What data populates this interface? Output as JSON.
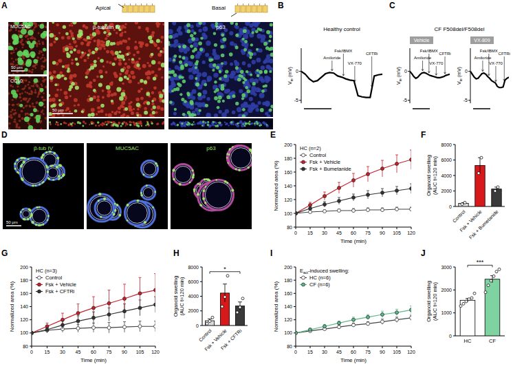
{
  "panel_letters": [
    "A",
    "B",
    "C",
    "D",
    "E",
    "F",
    "G",
    "H",
    "I",
    "J"
  ],
  "images": {
    "A": {
      "header": [
        "Apical",
        "Basal"
      ],
      "labels": [
        "MUC5AC",
        "CC10",
        "β-tubulin IV",
        "p63"
      ],
      "scale_bars": [
        "50 μm",
        "50 μm"
      ]
    },
    "D": {
      "labels": [
        "β-tub IV",
        "MUC5AC",
        "p63"
      ],
      "scale_bar": "50 μm"
    }
  },
  "chart_data": [
    {
      "type": "line",
      "title": "Healthy control",
      "x": [
        0,
        5,
        10,
        15,
        20,
        25,
        30,
        35,
        40,
        45,
        50,
        55,
        60,
        65,
        70,
        75,
        80,
        85,
        90,
        95,
        100
      ],
      "xlim": [
        0,
        100
      ],
      "ylim": [
        -5.5,
        4
      ],
      "yticks": [
        -5,
        0
      ],
      "y_label": [
        "V",
        "te",
        " (mV)"
      ],
      "tick_labels": "y",
      "series": [
        {
          "color": "#000000",
          "values": [
            0,
            -0.5,
            -1.3,
            -1.8,
            -1.6,
            -1.0,
            -0.4,
            -0.2,
            -0.3,
            -0.8,
            -1.0,
            -1.3,
            -1.5,
            -1.6,
            -4.2,
            -4.4,
            -4.5,
            -4.5,
            -0.8,
            -0.6,
            -0.5
          ]
        }
      ],
      "annotations": [
        {
          "text": "Amiloride",
          "x": 38
        },
        {
          "text": "Fsk/IBMX",
          "x": 52
        },
        {
          "text": "VX-770",
          "x": 66
        },
        {
          "text": "CFTRi",
          "x": 87
        }
      ]
    },
    {
      "type": "line",
      "title": "CF F508del/F508del",
      "subtitle": "Vehicle",
      "x": [
        0,
        5,
        10,
        15,
        20,
        25,
        30,
        35,
        40,
        45,
        50,
        55,
        60,
        65,
        70,
        75,
        80,
        85,
        90,
        95,
        100
      ],
      "xlim": [
        0,
        100
      ],
      "ylim": [
        -5.5,
        4
      ],
      "yticks": [
        -5,
        0
      ],
      "y_label": [
        "V",
        "te",
        " (mV)"
      ],
      "tick_labels": "y",
      "series": [
        {
          "color": "#000000",
          "values": [
            0,
            -0.4,
            -0.9,
            -1.2,
            -1.0,
            -0.6,
            -0.3,
            -0.2,
            -0.3,
            -0.5,
            -0.7,
            -0.8,
            -0.9,
            -1.0,
            -1.1,
            -1.1,
            -1.0,
            -0.9,
            -0.7,
            -0.6,
            -0.5
          ]
        }
      ],
      "annotations": [
        {
          "text": "Amiloride",
          "x": 32
        },
        {
          "text": "Fsk/IBMX",
          "x": 48
        },
        {
          "text": "VX-770",
          "x": 66
        },
        {
          "text": "CFTRi",
          "x": 88
        }
      ]
    },
    {
      "type": "line",
      "subtitle": "VX-809",
      "x": [
        0,
        5,
        10,
        15,
        20,
        25,
        30,
        35,
        40,
        45,
        50,
        55,
        60,
        65,
        70,
        75,
        80,
        85,
        90,
        95,
        100
      ],
      "xlim": [
        0,
        100
      ],
      "ylim": [
        -5.5,
        4
      ],
      "yticks": [
        -5,
        0
      ],
      "y_label": [
        "V",
        "te",
        " (mV)"
      ],
      "tick_labels": "y",
      "series": [
        {
          "color": "#000000",
          "values": [
            0,
            -0.5,
            -1.0,
            -1.3,
            -1.2,
            -0.8,
            -0.4,
            -0.3,
            -0.5,
            -0.9,
            -1.2,
            -1.6,
            -1.8,
            -2.0,
            -2.6,
            -2.8,
            -2.8,
            -2.7,
            -1.5,
            -1.2,
            -1.0
          ]
        }
      ],
      "annotations": [
        {
          "text": "Amiloride",
          "x": 32
        },
        {
          "text": "Fsk/IBMX",
          "x": 48
        },
        {
          "text": "VX-770",
          "x": 66
        },
        {
          "text": "CFTRi",
          "x": 88
        }
      ]
    },
    {
      "type": "line",
      "title": "HC (n=2)",
      "x": [
        0,
        15,
        30,
        45,
        60,
        75,
        90,
        105,
        120
      ],
      "xlim": [
        0,
        120
      ],
      "xticks": [
        0,
        15,
        30,
        45,
        60,
        75,
        90,
        105,
        120
      ],
      "ylim": [
        80,
        200
      ],
      "yticks": [
        80,
        100,
        120,
        140,
        160,
        180,
        200
      ],
      "x_label": "Time (min)",
      "y_label": "Normalized area (%)",
      "legend": "upper left",
      "series": [
        {
          "name": "Control",
          "color": "#ffffff",
          "marker": "circle",
          "values": [
            100,
            102,
            103,
            104,
            104,
            105,
            105,
            106,
            106
          ],
          "errors": [
            0,
            2,
            2,
            2,
            3,
            3,
            3,
            3,
            3
          ]
        },
        {
          "name": "Fsk + Vehicle",
          "color": "#c8202a",
          "marker": "circle",
          "values": [
            100,
            112,
            125,
            137,
            148,
            157,
            165,
            172,
            178
          ],
          "errors": [
            0,
            4,
            6,
            8,
            10,
            11,
            12,
            13,
            14
          ]
        },
        {
          "name": "Fsk + Bumetanide",
          "color": "#333333",
          "marker": "circle",
          "values": [
            100,
            107,
            113,
            118,
            123,
            127,
            130,
            133,
            136
          ],
          "errors": [
            0,
            3,
            4,
            5,
            5,
            6,
            6,
            6,
            7
          ]
        }
      ]
    },
    {
      "type": "bar",
      "categories": [
        "Control",
        "Fsk + Vehicle",
        "Fsk + Bumetanide"
      ],
      "values": [
        400,
        5300,
        2250
      ],
      "errors": [
        100,
        1000,
        250
      ],
      "points": [
        [
          300,
          500
        ],
        [
          4300,
          6300
        ],
        [
          2000,
          2500
        ]
      ],
      "colors": [
        "#d9d9d9",
        "#d7191c",
        "#3a3a3a"
      ],
      "ylim": [
        0,
        8000
      ],
      "yticks": [
        0,
        2000,
        4000,
        6000,
        8000
      ],
      "y_label": [
        "Organoid swelling",
        "(AUC t=120 min)"
      ]
    },
    {
      "type": "line",
      "title": "HC (n=3)",
      "x": [
        0,
        15,
        30,
        45,
        60,
        75,
        90,
        105,
        120
      ],
      "xlim": [
        0,
        120
      ],
      "xticks": [
        0,
        15,
        30,
        45,
        60,
        75,
        90,
        105,
        120
      ],
      "ylim": [
        80,
        200
      ],
      "yticks": [
        80,
        100,
        120,
        140,
        160,
        180,
        200
      ],
      "x_label": "Time (min)",
      "y_label": "Normalized area (%)",
      "legend": "upper left",
      "series": [
        {
          "name": "Control",
          "color": "#ffffff",
          "marker": "circle",
          "values": [
            100,
            104,
            106,
            107,
            108,
            108,
            109,
            110,
            110
          ],
          "errors": [
            0,
            4,
            5,
            6,
            7,
            8,
            8,
            8,
            8
          ]
        },
        {
          "name": "Fsk + Vehicle",
          "color": "#c8202a",
          "marker": "circle",
          "values": [
            100,
            110,
            120,
            130,
            138,
            145,
            152,
            160,
            165
          ],
          "errors": [
            0,
            5,
            10,
            14,
            17,
            20,
            22,
            24,
            25
          ]
        },
        {
          "name": "Fsk + CFTRi",
          "color": "#333333",
          "marker": "circle",
          "values": [
            100,
            105,
            112,
            118,
            123,
            128,
            133,
            138,
            143
          ],
          "errors": [
            0,
            4,
            6,
            8,
            9,
            10,
            11,
            12,
            12
          ]
        }
      ]
    },
    {
      "type": "bar",
      "categories": [
        "Control",
        "Fsk + Vehicle",
        "Fsk + CFTRi"
      ],
      "values": [
        650,
        4433,
        2667
      ],
      "errors": [
        250,
        1240,
        555
      ],
      "points": [
        [
          250,
          600,
          1100
        ],
        [
          2600,
          3900,
          6800
        ],
        [
          1800,
          2500,
          3700
        ]
      ],
      "colors": [
        "#d9d9d9",
        "#d7191c",
        "#3a3a3a"
      ],
      "ylim": [
        0,
        8000
      ],
      "yticks": [
        0,
        2000,
        4000,
        6000,
        8000
      ],
      "y_label": [
        "Organoid swelling",
        "(AUC t=120 min)"
      ],
      "significance": [
        {
          "label": "*",
          "between": [
            0,
            2
          ]
        }
      ]
    },
    {
      "type": "line",
      "title": [
        "E",
        "act",
        "-induced swelling:"
      ],
      "x": [
        0,
        15,
        30,
        45,
        60,
        75,
        90,
        105,
        120
      ],
      "xlim": [
        0,
        120
      ],
      "xticks": [
        0,
        15,
        30,
        45,
        60,
        75,
        90,
        105,
        120
      ],
      "ylim": [
        80,
        200
      ],
      "yticks": [
        80,
        100,
        120,
        140,
        160,
        180,
        200
      ],
      "x_label": "Time (min)",
      "y_label": "Normalized area (%)",
      "legend": "upper left",
      "series": [
        {
          "name": "HC (n=6)",
          "color": "#ffffff",
          "marker": "circle",
          "values": [
            100,
            103,
            106,
            109,
            112,
            114,
            117,
            120,
            123
          ],
          "errors": [
            0,
            2,
            2,
            3,
            3,
            3,
            4,
            4,
            4
          ]
        },
        {
          "name": "CF (n=6)",
          "color": "#5cb88a",
          "marker": "circle",
          "values": [
            100,
            105,
            110,
            115,
            120,
            124,
            128,
            131,
            135
          ],
          "errors": [
            0,
            2,
            3,
            3,
            4,
            4,
            5,
            5,
            6
          ]
        }
      ]
    },
    {
      "type": "bar",
      "categories": [
        "HC",
        "CF"
      ],
      "values": [
        1550,
        2467
      ],
      "errors": [
        80,
        155
      ],
      "points": [
        [
          1300,
          1400,
          1500,
          1600,
          1650,
          1850
        ],
        [
          1900,
          2200,
          2400,
          2600,
          2800,
          2900
        ]
      ],
      "colors": [
        "#ffffff",
        "#7fd3a0"
      ],
      "ylim": [
        0,
        3000
      ],
      "yticks": [
        0,
        1000,
        2000,
        3000
      ],
      "y_label": [
        "Organoid swelling",
        "(AUC t=120 min)"
      ],
      "significance": [
        {
          "label": "***",
          "between": [
            0,
            1
          ]
        }
      ]
    }
  ]
}
